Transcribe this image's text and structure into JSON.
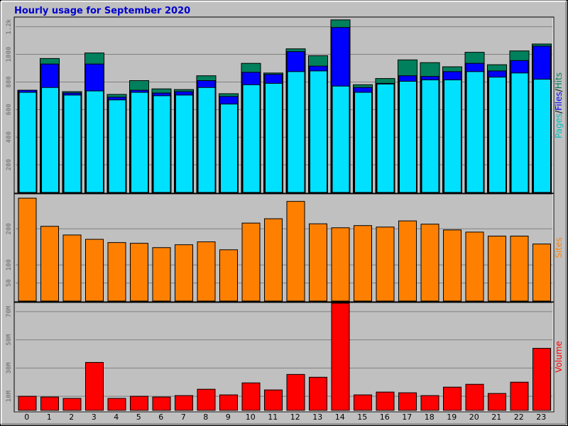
{
  "title": "Hourly usage for September 2020",
  "colors": {
    "background": "#c0c0c0",
    "hits": "#00805c",
    "files": "#0000ff",
    "pages": "#00e0ff",
    "sites": "#ff8000",
    "volume": "#ff0000",
    "title": "#0000cc"
  },
  "chart_data": [
    {
      "type": "bar",
      "name": "hits-files-pages",
      "categories": [
        "0",
        "1",
        "2",
        "3",
        "4",
        "5",
        "6",
        "7",
        "8",
        "9",
        "10",
        "11",
        "12",
        "13",
        "14",
        "15",
        "16",
        "17",
        "18",
        "19",
        "20",
        "21",
        "22",
        "23"
      ],
      "yticks": [
        {
          "value": 200,
          "label": "200"
        },
        {
          "value": 400,
          "label": "400"
        },
        {
          "value": 600,
          "label": "600"
        },
        {
          "value": 800,
          "label": "800"
        },
        {
          "value": 1000,
          "label": "1000"
        },
        {
          "value": 1200,
          "label": "1.2k"
        }
      ],
      "ylim": [
        0,
        1260
      ],
      "side_label": [
        {
          "text": "Pages",
          "color": "#00c0c0"
        },
        {
          "text": "/",
          "color": "#000000"
        },
        {
          "text": "Files",
          "color": "#0000ff"
        },
        {
          "text": "/",
          "color": "#000000"
        },
        {
          "text": "Hits",
          "color": "#00805c"
        }
      ],
      "series": [
        {
          "name": "Hits",
          "color": "#00805c",
          "values": [
            740,
            970,
            730,
            1010,
            710,
            810,
            750,
            745,
            845,
            715,
            935,
            865,
            1040,
            990,
            1250,
            780,
            825,
            960,
            940,
            910,
            1015,
            925,
            1025,
            1075
          ]
        },
        {
          "name": "Files",
          "color": "#0000ff",
          "values": [
            740,
            930,
            720,
            930,
            690,
            740,
            720,
            730,
            810,
            695,
            870,
            855,
            1020,
            915,
            1195,
            760,
            790,
            845,
            840,
            875,
            935,
            880,
            955,
            1060
          ]
        },
        {
          "name": "Pages",
          "color": "#00e0ff",
          "values": [
            725,
            760,
            705,
            735,
            670,
            725,
            700,
            705,
            760,
            640,
            780,
            790,
            875,
            880,
            770,
            725,
            785,
            805,
            815,
            815,
            875,
            835,
            865,
            820
          ]
        }
      ]
    },
    {
      "type": "bar",
      "name": "sites",
      "categories": [
        "0",
        "1",
        "2",
        "3",
        "4",
        "5",
        "6",
        "7",
        "8",
        "9",
        "10",
        "11",
        "12",
        "13",
        "14",
        "15",
        "16",
        "17",
        "18",
        "19",
        "20",
        "21",
        "22",
        "23"
      ],
      "yticks": [
        {
          "value": 50,
          "label": "50"
        },
        {
          "value": 100,
          "label": "100"
        },
        {
          "value": 200,
          "label": "200"
        }
      ],
      "ylim": [
        0,
        295
      ],
      "side_label": [
        {
          "text": "Sites",
          "color": "#ff8000"
        }
      ],
      "series": [
        {
          "name": "Sites",
          "color": "#ff8000",
          "values": [
            285,
            207,
            183,
            171,
            162,
            160,
            148,
            156,
            164,
            142,
            216,
            228,
            276,
            214,
            203,
            209,
            205,
            222,
            213,
            197,
            191,
            180,
            180,
            158
          ]
        }
      ]
    },
    {
      "type": "bar",
      "name": "volume",
      "categories": [
        "0",
        "1",
        "2",
        "3",
        "4",
        "5",
        "6",
        "7",
        "8",
        "9",
        "10",
        "11",
        "12",
        "13",
        "14",
        "15",
        "16",
        "17",
        "18",
        "19",
        "20",
        "21",
        "22",
        "23"
      ],
      "yticks": [
        {
          "value": 10,
          "label": "10M"
        },
        {
          "value": 30,
          "label": "30M"
        },
        {
          "value": 50,
          "label": "50M"
        },
        {
          "value": 70,
          "label": "70M"
        }
      ],
      "ylim": [
        0,
        76
      ],
      "unit": "MB",
      "side_label": [
        {
          "text": "Volume",
          "color": "#ff0000"
        }
      ],
      "series": [
        {
          "name": "Volume",
          "color": "#ff0000",
          "values": [
            10,
            9.5,
            8.5,
            34,
            8.5,
            10,
            9.5,
            10.5,
            15,
            11,
            19.5,
            14.5,
            25.5,
            23.5,
            76,
            11,
            13,
            12.5,
            10.5,
            16.5,
            18.5,
            12,
            20,
            44
          ]
        }
      ]
    }
  ]
}
